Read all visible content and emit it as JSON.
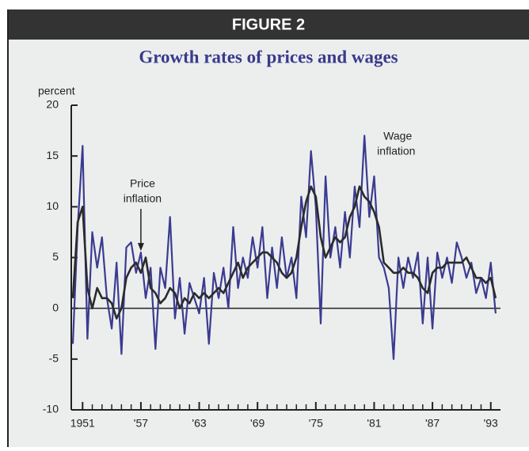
{
  "chart_data": {
    "type": "line",
    "figure_label": "FIGURE 2",
    "title": "Growth rates of prices and wages",
    "ylabel": "percent",
    "xlim": [
      1950,
      1994
    ],
    "ylim": [
      -10,
      20
    ],
    "yticks": [
      -10,
      -5,
      0,
      5,
      10,
      15,
      20
    ],
    "xticks": [
      1951,
      {
        "value": 1957,
        "label": "'57"
      },
      {
        "value": 1963,
        "label": "'63"
      },
      {
        "value": 1969,
        "label": "'69"
      },
      {
        "value": 1975,
        "label": "'75"
      },
      {
        "value": 1981,
        "label": "'81"
      },
      {
        "value": 1987,
        "label": "'87"
      },
      {
        "value": 1993,
        "label": "'93"
      }
    ],
    "xminorticks": [
      1951,
      1952,
      1953,
      1954,
      1955,
      1956,
      1957,
      1958,
      1959,
      1960,
      1961,
      1962,
      1963,
      1964,
      1965,
      1966,
      1967,
      1968,
      1969,
      1970,
      1971,
      1972,
      1973,
      1974,
      1975,
      1976,
      1977,
      1978,
      1979,
      1980,
      1981,
      1982,
      1983,
      1984,
      1985,
      1986,
      1987,
      1988,
      1989,
      1990,
      1991,
      1992,
      1993
    ],
    "x": [
      1950,
      1950.5,
      1951,
      1951.5,
      1952,
      1952.5,
      1953,
      1953.5,
      1954,
      1954.5,
      1955,
      1955.5,
      1956,
      1956.5,
      1957,
      1957.5,
      1958,
      1958.5,
      1959,
      1959.5,
      1960,
      1960.5,
      1961,
      1961.5,
      1962,
      1962.5,
      1963,
      1963.5,
      1964,
      1964.5,
      1965,
      1965.5,
      1966,
      1966.5,
      1967,
      1967.5,
      1968,
      1968.5,
      1969,
      1969.5,
      1970,
      1970.5,
      1971,
      1971.5,
      1972,
      1972.5,
      1973,
      1973.5,
      1974,
      1974.5,
      1975,
      1975.5,
      1976,
      1976.5,
      1977,
      1977.5,
      1978,
      1978.5,
      1979,
      1979.5,
      1980,
      1980.5,
      1981,
      1981.5,
      1982,
      1982.5,
      1983,
      1983.5,
      1984,
      1984.5,
      1985,
      1985.5,
      1986,
      1986.5,
      1987,
      1987.5,
      1988,
      1988.5,
      1989,
      1989.5,
      1990,
      1990.5,
      1991,
      1991.5,
      1992,
      1992.5,
      1993,
      1993.5
    ],
    "series": [
      {
        "name": "Wage inflation",
        "color": "#3b3b90",
        "values": [
          -3.5,
          8,
          16,
          -3,
          7.5,
          4,
          7,
          1,
          -2,
          4.5,
          -4.5,
          6,
          6.5,
          3.5,
          5.5,
          1,
          4,
          -4,
          4,
          2,
          9,
          -1,
          3,
          -2.5,
          2.5,
          1,
          -0.5,
          3,
          -3.5,
          3.5,
          1,
          4,
          0,
          8,
          2,
          5,
          3,
          7,
          4,
          8,
          1,
          6,
          2,
          7,
          3,
          5,
          1,
          11,
          7,
          15.5,
          10,
          -1.5,
          13,
          5,
          8,
          4,
          9.5,
          5,
          12,
          8,
          17,
          9,
          13,
          5,
          4,
          2,
          -5,
          5,
          2,
          5,
          3,
          5.5,
          -1.5,
          5,
          -2,
          5.5,
          3,
          5,
          2.5,
          6.5,
          5,
          3,
          4.5,
          1.5,
          3,
          1,
          4.5,
          -0.5
        ]
      },
      {
        "name": "Price inflation",
        "color": "#2b2b2b",
        "values": [
          1,
          8.5,
          10,
          2,
          0,
          2,
          1,
          1,
          0.5,
          -1,
          0,
          3,
          4,
          4.5,
          3.5,
          5,
          2,
          1.5,
          0.5,
          1,
          2,
          1.5,
          0,
          1,
          0.5,
          1.5,
          1,
          1.5,
          1,
          1.5,
          2,
          1.5,
          2.5,
          3.5,
          4.5,
          3,
          4,
          4.5,
          5,
          5.5,
          5.5,
          5,
          4.5,
          3.5,
          3,
          3.5,
          5,
          8,
          10.5,
          12,
          11,
          7,
          5,
          6,
          7,
          6.5,
          7,
          9,
          10,
          12,
          11,
          10.5,
          9.5,
          8,
          4.5,
          4,
          3.5,
          3.5,
          4,
          3.5,
          3.5,
          3,
          2,
          1.5,
          3.5,
          4,
          4,
          4.5,
          4.5,
          4.5,
          4.5,
          5,
          4,
          3,
          3,
          2.5,
          3,
          1
        ]
      }
    ],
    "annotations": [
      {
        "text": [
          "Price",
          "inflation"
        ],
        "x": 1957,
        "y": 5.5
      },
      {
        "text": [
          "Wage",
          "inflation"
        ],
        "x": 1980,
        "y": 17
      }
    ]
  }
}
